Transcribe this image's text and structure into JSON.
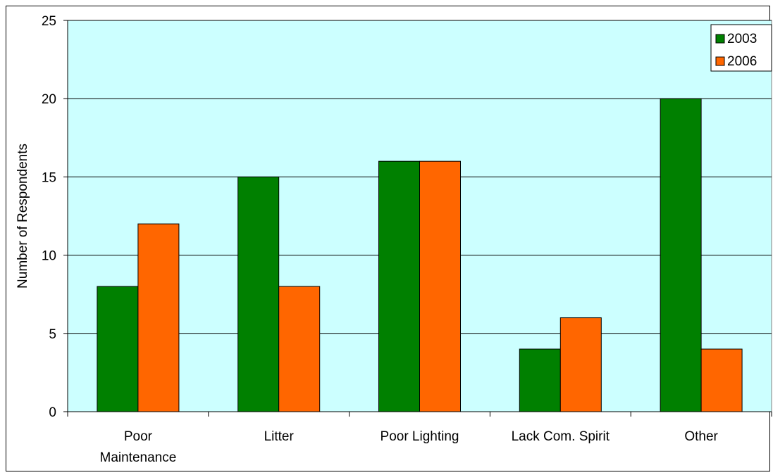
{
  "chart_data": {
    "type": "bar",
    "title": "",
    "xlabel": "",
    "ylabel": "Number of Respondents",
    "ylim": [
      0,
      25
    ],
    "yticks": [
      "0",
      "5",
      "10",
      "15",
      "20",
      "25"
    ],
    "categories": [
      [
        "Poor",
        "Maintenance"
      ],
      [
        "Litter"
      ],
      [
        "Poor Lighting"
      ],
      [
        "Lack Com. Spirit"
      ],
      [
        "Other"
      ]
    ],
    "series": [
      {
        "name": "2003",
        "color": "#008000",
        "values": [
          8,
          15,
          16,
          4,
          20
        ]
      },
      {
        "name": "2006",
        "color": "#ff6600",
        "values": [
          12,
          8,
          16,
          6,
          4
        ]
      }
    ],
    "plot_background": "#ccffff",
    "grid": true,
    "legend": "top-right"
  }
}
